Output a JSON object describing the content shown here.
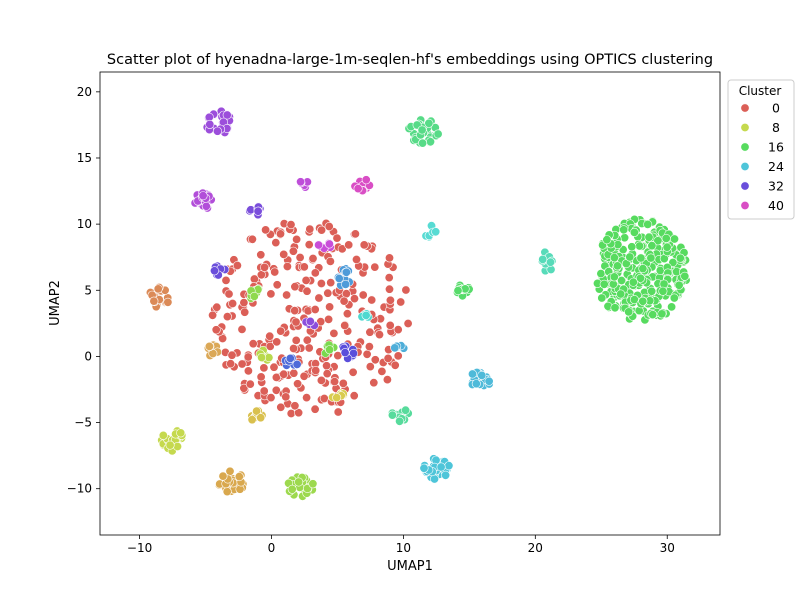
{
  "chart_data": {
    "type": "scatter",
    "title": "Scatter plot of hyenadna-large-1m-seqlen-hf's embeddings using OPTICS clustering",
    "xlabel": "UMAP1",
    "ylabel": "UMAP2",
    "xlim": [
      -13,
      34
    ],
    "ylim": [
      -13.5,
      21.5
    ],
    "xticks": [
      -10,
      0,
      10,
      20,
      30
    ],
    "yticks": [
      -10,
      -5,
      0,
      5,
      10,
      15,
      20
    ],
    "xtick_labels": [
      "−10",
      "0",
      "10",
      "20",
      "30"
    ],
    "ytick_labels": [
      "−10",
      "−5",
      "0",
      "5",
      "10",
      "15",
      "20"
    ],
    "grid": false,
    "legend": {
      "title": "Cluster",
      "placement": "upper right, outside plot",
      "entries": [
        {
          "label": "0",
          "color": "#db5f57"
        },
        {
          "label": "8",
          "color": "#c5d94e"
        },
        {
          "label": "16",
          "color": "#57db5f"
        },
        {
          "label": "24",
          "color": "#4ec5d9"
        },
        {
          "label": "32",
          "color": "#6a4edb"
        },
        {
          "label": "40",
          "color": "#d94ec5"
        }
      ]
    },
    "clusters": [
      {
        "cluster": 0,
        "color": "#db5f57",
        "cx": 3,
        "cy": 3,
        "spread": [
          7.5,
          7.5
        ],
        "n": 300
      },
      {
        "cluster": 2,
        "color": "#db8a57",
        "cx": -8.5,
        "cy": 4.5,
        "spread": [
          0.8,
          0.8
        ],
        "n": 18
      },
      {
        "cluster": 3,
        "color": "#dba857",
        "cx": -4.5,
        "cy": 0.5,
        "spread": [
          0.5,
          0.5
        ],
        "n": 10
      },
      {
        "cluster": 4,
        "color": "#d9a84e",
        "cx": -3,
        "cy": -9.5,
        "spread": [
          1.0,
          0.9
        ],
        "n": 30
      },
      {
        "cluster": 5,
        "color": "#d9c04e",
        "cx": -1,
        "cy": -4.5,
        "spread": [
          0.6,
          0.5
        ],
        "n": 10
      },
      {
        "cluster": 6,
        "color": "#d9cc4e",
        "cx": 5,
        "cy": -3,
        "spread": [
          0.5,
          0.5
        ],
        "n": 7
      },
      {
        "cluster": 8,
        "color": "#c5d94e",
        "cx": -7.5,
        "cy": -6.3,
        "spread": [
          0.9,
          0.9
        ],
        "n": 25
      },
      {
        "cluster": 9,
        "color": "#b9d94e",
        "cx": -0.5,
        "cy": 0,
        "spread": [
          0.5,
          0.5
        ],
        "n": 8
      },
      {
        "cluster": 10,
        "color": "#9dd94e",
        "cx": 2.2,
        "cy": -9.8,
        "spread": [
          1.1,
          0.8
        ],
        "n": 25
      },
      {
        "cluster": 11,
        "color": "#8fd94e",
        "cx": -1.3,
        "cy": 4.8,
        "spread": [
          0.5,
          0.5
        ],
        "n": 8
      },
      {
        "cluster": 12,
        "color": "#7ad94e",
        "cx": 4.3,
        "cy": 0.5,
        "spread": [
          0.5,
          0.4
        ],
        "n": 6
      },
      {
        "cluster": 15,
        "color": "#57db6a",
        "cx": 14.5,
        "cy": 5.2,
        "spread": [
          0.5,
          0.7
        ],
        "n": 12
      },
      {
        "cluster": 16,
        "color": "#57db5f",
        "cx": 28,
        "cy": 6.5,
        "spread": [
          3.6,
          3.9
        ],
        "n": 320
      },
      {
        "cluster": 17,
        "color": "#57db87",
        "cx": 11.5,
        "cy": 17,
        "spread": [
          1.2,
          0.9
        ],
        "n": 35
      },
      {
        "cluster": 18,
        "color": "#57db9c",
        "cx": 9.8,
        "cy": -4.5,
        "spread": [
          0.7,
          0.6
        ],
        "n": 12
      },
      {
        "cluster": 20,
        "color": "#57dbb9",
        "cx": 20.8,
        "cy": 7.0,
        "spread": [
          0.5,
          0.9
        ],
        "n": 12
      },
      {
        "cluster": 22,
        "color": "#57dbd3",
        "cx": 12,
        "cy": 9.5,
        "spread": [
          0.5,
          0.5
        ],
        "n": 8
      },
      {
        "cluster": 23,
        "color": "#4ed9d0",
        "cx": 7.2,
        "cy": 3,
        "spread": [
          0.4,
          0.3
        ],
        "n": 5
      },
      {
        "cluster": 24,
        "color": "#4ec5d9",
        "cx": 12.5,
        "cy": -8.5,
        "spread": [
          1.0,
          0.8
        ],
        "n": 30
      },
      {
        "cluster": 25,
        "color": "#4ebad9",
        "cx": 15.8,
        "cy": -1.8,
        "spread": [
          0.8,
          0.7
        ],
        "n": 20
      },
      {
        "cluster": 26,
        "color": "#4eaed9",
        "cx": 9.7,
        "cy": 0.8,
        "spread": [
          0.4,
          0.4
        ],
        "n": 6
      },
      {
        "cluster": 27,
        "color": "#4e9bd9",
        "cx": 5.5,
        "cy": 6,
        "spread": [
          0.5,
          0.8
        ],
        "n": 12
      },
      {
        "cluster": 30,
        "color": "#4e6ad9",
        "cx": 1.5,
        "cy": -0.4,
        "spread": [
          0.6,
          0.4
        ],
        "n": 8
      },
      {
        "cluster": 31,
        "color": "#5a4edb",
        "cx": 5.7,
        "cy": 0.3,
        "spread": [
          0.6,
          0.5
        ],
        "n": 10
      },
      {
        "cluster": 32,
        "color": "#6a4edb",
        "cx": -4,
        "cy": 6.5,
        "spread": [
          0.5,
          0.5
        ],
        "n": 10
      },
      {
        "cluster": 33,
        "color": "#7a4edb",
        "cx": -1.3,
        "cy": 11,
        "spread": [
          0.6,
          0.4
        ],
        "n": 8
      },
      {
        "cluster": 34,
        "color": "#8c4edb",
        "cx": 3,
        "cy": 2.5,
        "spread": [
          0.4,
          0.3
        ],
        "n": 4
      },
      {
        "cluster": 35,
        "color": "#9c4edb",
        "cx": -4,
        "cy": 17.7,
        "spread": [
          1.0,
          0.9
        ],
        "n": 30
      },
      {
        "cluster": 36,
        "color": "#b24ed9",
        "cx": -5.2,
        "cy": 11.8,
        "spread": [
          0.8,
          0.7
        ],
        "n": 20
      },
      {
        "cluster": 37,
        "color": "#be4ed9",
        "cx": 2.5,
        "cy": 13,
        "spread": [
          0.5,
          0.3
        ],
        "n": 6
      },
      {
        "cluster": 38,
        "color": "#c94ed9",
        "cx": 4,
        "cy": 8.3,
        "spread": [
          0.5,
          0.4
        ],
        "n": 6
      },
      {
        "cluster": 40,
        "color": "#d94ec5",
        "cx": 6.9,
        "cy": 13,
        "spread": [
          0.6,
          0.5
        ],
        "n": 10
      }
    ]
  }
}
